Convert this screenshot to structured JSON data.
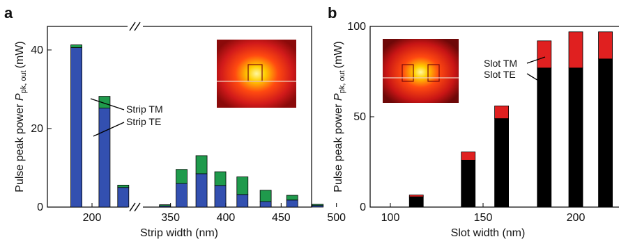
{
  "chart_data": [
    {
      "panel": "a",
      "type": "bar",
      "stacked": true,
      "xlabel": "Strip width (nm)",
      "ylabel_main": "Pulse peak power",
      "ylabel_symbol": "P",
      "ylabel_subscript": "pk, out",
      "ylabel_unit": "(mW)",
      "x_axis_break": true,
      "x_ticks": [
        "200",
        "350",
        "400",
        "450",
        "500"
      ],
      "y_ticks": [
        "0",
        "20",
        "40"
      ],
      "ylim": [
        0,
        46
      ],
      "colors": {
        "bottom": "#3350b0",
        "top": "#1f9a4c"
      },
      "series": [
        {
          "name": "Strip TE",
          "values": [
            40.6,
            25.2,
            5.0,
            0.3,
            6.0,
            8.5,
            5.5,
            3.2,
            1.4,
            1.8,
            0.4
          ]
        },
        {
          "name": "Strip TM",
          "values": [
            0.7,
            3.0,
            0.6,
            0.3,
            3.6,
            4.6,
            3.5,
            4.5,
            2.9,
            1.2,
            0.3
          ]
        }
      ],
      "x": [
        190,
        208,
        220,
        345,
        360,
        378,
        395,
        415,
        436,
        460,
        483
      ],
      "annotations": [
        "Strip TM",
        "Strip TE"
      ],
      "inset": "mode-profile"
    },
    {
      "panel": "b",
      "type": "bar",
      "stacked": true,
      "xlabel": "Slot width (nm)",
      "ylabel_main": "Pulse peak power",
      "ylabel_symbol": "P",
      "ylabel_subscript": "pk, out",
      "ylabel_unit": "(mW)",
      "x_ticks": [
        "100",
        "150",
        "200"
      ],
      "y_ticks": [
        "0",
        "50",
        "100"
      ],
      "ylim": [
        0,
        100
      ],
      "colors": {
        "bottom": "#000000",
        "top": "#e02020"
      },
      "series": [
        {
          "name": "Slot TE",
          "values": [
            5.7,
            26.0,
            49.0,
            77.0,
            77.0,
            82.0
          ]
        },
        {
          "name": "Slot TM",
          "values": [
            1.0,
            4.5,
            7.0,
            15.0,
            20.0,
            15.0
          ]
        }
      ],
      "x": [
        114,
        142,
        160,
        183,
        200,
        216
      ],
      "annotations": [
        "Slot TM",
        "Slot TE"
      ],
      "inset": "mode-profile"
    }
  ]
}
